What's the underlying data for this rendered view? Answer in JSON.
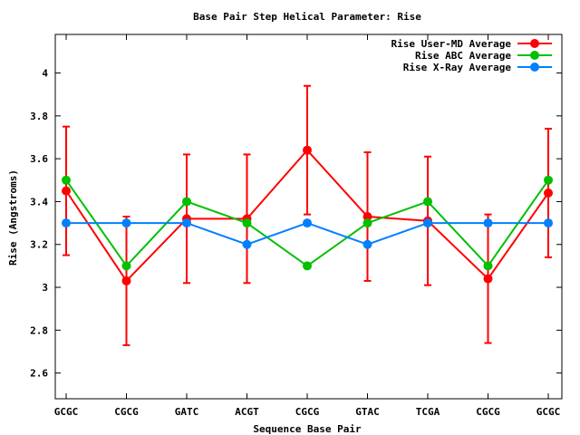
{
  "chart_data": {
    "type": "line",
    "title": "Base Pair Step Helical Parameter: Rise",
    "xlabel": "Sequence Base Pair",
    "ylabel": "Rise (Angstroms)",
    "categories": [
      "GCGC",
      "CGCG",
      "GATC",
      "ACGT",
      "CGCG",
      "GTAC",
      "TCGA",
      "CGCG",
      "GCGC"
    ],
    "ylim": [
      2.48,
      4.18
    ],
    "yticks": [
      "2.6",
      "2.8",
      "3",
      "3.2",
      "3.4",
      "3.6",
      "3.8",
      "4"
    ],
    "ytick_values": [
      2.6,
      2.8,
      3.0,
      3.2,
      3.4,
      3.6,
      3.8,
      4.0
    ],
    "grid": false,
    "legend_position": "top-right",
    "series": [
      {
        "name": "Rise User-MD Average",
        "color": "#ff0000",
        "values": [
          3.45,
          3.03,
          3.32,
          3.32,
          3.64,
          3.33,
          3.31,
          3.04,
          3.44
        ],
        "error": [
          0.3,
          0.3,
          0.3,
          0.3,
          0.3,
          0.3,
          0.3,
          0.3,
          0.3
        ]
      },
      {
        "name": "Rise ABC Average",
        "color": "#00c000",
        "values": [
          3.5,
          3.1,
          3.4,
          3.3,
          3.1,
          3.3,
          3.4,
          3.1,
          3.5
        ]
      },
      {
        "name": "Rise X-Ray Average",
        "color": "#0080ff",
        "values": [
          3.3,
          3.3,
          3.3,
          3.2,
          3.3,
          3.2,
          3.3,
          3.3,
          3.3
        ]
      }
    ]
  }
}
